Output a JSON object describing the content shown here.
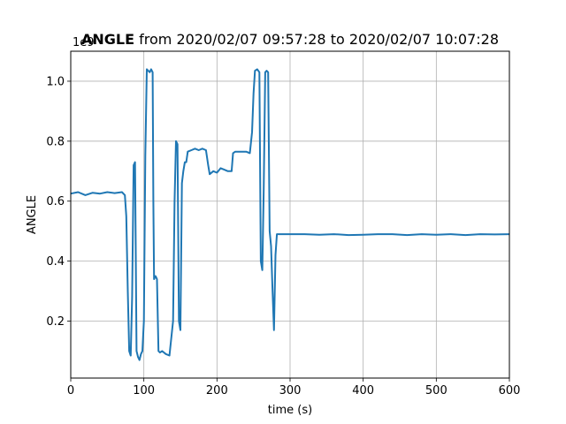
{
  "chart_data": {
    "type": "line",
    "title_bold": "ANGLE",
    "title_rest": " from 2020/02/07 09:57:28 to 2020/02/07 10:07:28",
    "xlabel": "time (s)",
    "ylabel": "ANGLE",
    "offset_text": "1e9",
    "xlim": [
      0,
      600
    ],
    "ylim": [
      0.01,
      1.1
    ],
    "xticks": [
      0,
      100,
      200,
      300,
      400,
      500,
      600
    ],
    "xtick_labels": [
      "0",
      "100",
      "200",
      "300",
      "400",
      "500",
      "600"
    ],
    "yticks": [
      0.2,
      0.4,
      0.6,
      0.8,
      1.0
    ],
    "ytick_labels": [
      "0.2",
      "0.4",
      "0.6",
      "0.8",
      "1.0"
    ],
    "grid": true,
    "line_color": "#1f77b4",
    "series": [
      {
        "x": [
          0,
          10,
          20,
          30,
          40,
          50,
          60,
          70,
          74,
          76,
          78,
          80,
          82,
          84,
          86,
          88,
          90,
          92,
          94,
          96,
          98,
          100,
          102,
          104,
          106,
          108,
          110,
          112,
          113,
          114,
          116,
          118,
          120,
          122,
          125,
          130,
          135,
          140,
          142,
          144,
          146,
          148,
          150,
          152,
          154,
          156,
          158,
          160,
          165,
          170,
          175,
          180,
          185,
          188,
          190,
          195,
          200,
          205,
          210,
          215,
          220,
          222,
          225,
          230,
          235,
          240,
          245,
          248,
          250,
          252,
          255,
          258,
          260,
          262,
          264,
          266,
          268,
          270,
          272,
          274,
          276,
          278,
          280,
          282,
          285,
          290,
          300,
          320,
          340,
          360,
          380,
          400,
          420,
          440,
          460,
          480,
          500,
          520,
          540,
          560,
          580,
          600
        ],
        "y": [
          0.625,
          0.63,
          0.62,
          0.628,
          0.625,
          0.63,
          0.627,
          0.63,
          0.62,
          0.55,
          0.3,
          0.1,
          0.085,
          0.28,
          0.72,
          0.73,
          0.1,
          0.08,
          0.07,
          0.09,
          0.1,
          0.2,
          0.75,
          1.04,
          1.035,
          1.03,
          1.04,
          1.03,
          0.6,
          0.34,
          0.35,
          0.34,
          0.1,
          0.095,
          0.1,
          0.09,
          0.085,
          0.2,
          0.6,
          0.8,
          0.79,
          0.2,
          0.17,
          0.66,
          0.7,
          0.73,
          0.73,
          0.765,
          0.77,
          0.775,
          0.77,
          0.775,
          0.77,
          0.72,
          0.69,
          0.7,
          0.695,
          0.71,
          0.705,
          0.7,
          0.7,
          0.76,
          0.765,
          0.765,
          0.765,
          0.765,
          0.76,
          0.83,
          0.96,
          1.035,
          1.04,
          1.03,
          0.4,
          0.37,
          0.64,
          1.03,
          1.035,
          1.03,
          0.5,
          0.45,
          0.3,
          0.17,
          0.42,
          0.49,
          0.49,
          0.49,
          0.49,
          0.49,
          0.488,
          0.49,
          0.487,
          0.488,
          0.49,
          0.49,
          0.487,
          0.49,
          0.488,
          0.49,
          0.487,
          0.49,
          0.489,
          0.49
        ]
      }
    ]
  }
}
